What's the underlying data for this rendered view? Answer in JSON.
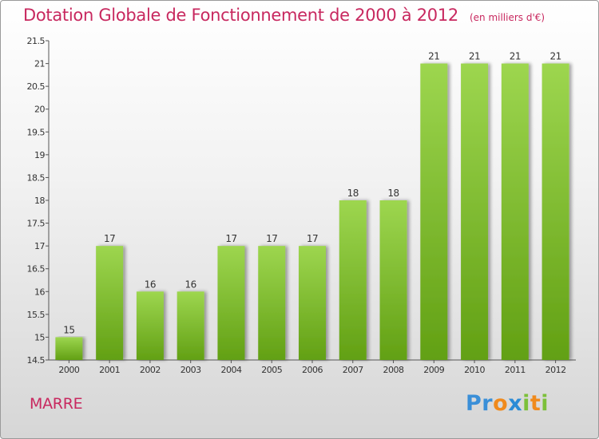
{
  "chart_data": {
    "type": "bar",
    "title": "Dotation Globale de Fonctionnement de 2000 à 2012",
    "subtitle": "(en milliers d'€)",
    "categories": [
      "2000",
      "2001",
      "2002",
      "2003",
      "2004",
      "2005",
      "2006",
      "2007",
      "2008",
      "2009",
      "2010",
      "2011",
      "2012"
    ],
    "values": [
      15,
      17,
      16,
      16,
      17,
      17,
      17,
      18,
      18,
      21,
      21,
      21,
      21
    ],
    "data_labels": [
      "15",
      "17",
      "16",
      "16",
      "17",
      "17",
      "17",
      "18",
      "18",
      "21",
      "21",
      "21",
      "21"
    ],
    "ylim": [
      14.5,
      21.5
    ],
    "yticks": [
      14.5,
      15,
      15.5,
      16,
      16.5,
      17,
      17.5,
      18,
      18.5,
      19,
      19.5,
      20,
      20.5,
      21,
      21.5
    ],
    "ytick_labels": [
      "14.5",
      "15",
      "15.5",
      "16",
      "16.5",
      "17",
      "17.5",
      "18",
      "18.5",
      "19",
      "19.5",
      "20",
      "20.5",
      "21",
      "21.5"
    ],
    "grid": false,
    "bar_color": "#7cc03a"
  },
  "place_name": "MARRE",
  "logo": {
    "text": "Proxiti",
    "letters": [
      {
        "ch": "P",
        "color": "#3a8fd8"
      },
      {
        "ch": "r",
        "color": "#3a8fd8"
      },
      {
        "ch": "o",
        "color": "#f08a1c"
      },
      {
        "ch": "x",
        "color": "#2a8bd6"
      },
      {
        "ch": "i",
        "color": "#7cc03a"
      },
      {
        "ch": "t",
        "color": "#f08a1c"
      },
      {
        "ch": "i",
        "color": "#7cc03a"
      }
    ]
  }
}
